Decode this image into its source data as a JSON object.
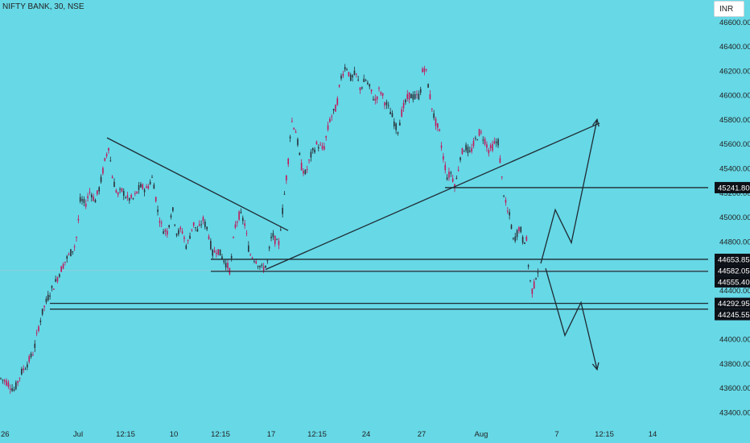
{
  "header": {
    "symbol": "NIFTY BANK, 30, NSE",
    "currency_button": "INR"
  },
  "chart_data": {
    "type": "candlestick",
    "y_ticks": [
      43400,
      43600,
      43800,
      44000,
      44200,
      44400,
      44600,
      44800,
      45000,
      45200,
      45400,
      45600,
      45800,
      46000,
      46200,
      46400,
      46600
    ],
    "ylim": [
      43280,
      46780
    ],
    "x_ticks": [
      {
        "label": "26",
        "x": 0
      },
      {
        "label": "Jul",
        "x": 97
      },
      {
        "label": "12:15",
        "x": 156
      },
      {
        "label": "10",
        "x": 216
      },
      {
        "label": "12:15",
        "x": 274
      },
      {
        "label": "17",
        "x": 337
      },
      {
        "label": "12:15",
        "x": 394
      },
      {
        "label": "24",
        "x": 455
      },
      {
        "label": "27",
        "x": 524
      },
      {
        "label": "Aug",
        "x": 598
      },
      {
        "label": "7",
        "x": 692
      },
      {
        "label": "12:15",
        "x": 751
      },
      {
        "label": "14",
        "x": 811
      }
    ],
    "x_domain": [
      0,
      880
    ],
    "price_path": [
      [
        0,
        43680
      ],
      [
        8,
        43650
      ],
      [
        18,
        43580
      ],
      [
        26,
        43720
      ],
      [
        34,
        43800
      ],
      [
        42,
        43900
      ],
      [
        48,
        44100
      ],
      [
        54,
        44250
      ],
      [
        62,
        44380
      ],
      [
        68,
        44450
      ],
      [
        75,
        44560
      ],
      [
        82,
        44650
      ],
      [
        90,
        44730
      ],
      [
        94,
        44780
      ],
      [
        97,
        44950
      ],
      [
        100,
        45150
      ],
      [
        106,
        45100
      ],
      [
        112,
        45220
      ],
      [
        118,
        45130
      ],
      [
        124,
        45250
      ],
      [
        130,
        45450
      ],
      [
        135,
        45580
      ],
      [
        140,
        45320
      ],
      [
        146,
        45180
      ],
      [
        152,
        45220
      ],
      [
        158,
        45150
      ],
      [
        166,
        45150
      ],
      [
        174,
        45250
      ],
      [
        182,
        45230
      ],
      [
        190,
        45330
      ],
      [
        196,
        45050
      ],
      [
        202,
        44900
      ],
      [
        208,
        44880
      ],
      [
        214,
        45080
      ],
      [
        220,
        44860
      ],
      [
        226,
        44900
      ],
      [
        232,
        44750
      ],
      [
        240,
        44950
      ],
      [
        246,
        44880
      ],
      [
        252,
        44980
      ],
      [
        258,
        44900
      ],
      [
        264,
        44700
      ],
      [
        270,
        44740
      ],
      [
        278,
        44650
      ],
      [
        286,
        44560
      ],
      [
        292,
        44920
      ],
      [
        298,
        45030
      ],
      [
        304,
        44950
      ],
      [
        310,
        44700
      ],
      [
        318,
        44650
      ],
      [
        326,
        44570
      ],
      [
        332,
        44620
      ],
      [
        338,
        44860
      ],
      [
        346,
        44760
      ],
      [
        352,
        45100
      ],
      [
        358,
        45450
      ],
      [
        362,
        45800
      ],
      [
        368,
        45700
      ],
      [
        374,
        45420
      ],
      [
        380,
        45350
      ],
      [
        386,
        45500
      ],
      [
        394,
        45600
      ],
      [
        402,
        45550
      ],
      [
        410,
        45800
      ],
      [
        418,
        45900
      ],
      [
        424,
        46150
      ],
      [
        430,
        46250
      ],
      [
        436,
        46130
      ],
      [
        442,
        46180
      ],
      [
        448,
        46050
      ],
      [
        454,
        46130
      ],
      [
        460,
        46050
      ],
      [
        466,
        45950
      ],
      [
        472,
        46050
      ],
      [
        478,
        45950
      ],
      [
        486,
        45850
      ],
      [
        494,
        45700
      ],
      [
        500,
        45880
      ],
      [
        508,
        46000
      ],
      [
        516,
        45980
      ],
      [
        522,
        46000
      ],
      [
        526,
        46250
      ],
      [
        530,
        46180
      ],
      [
        534,
        46000
      ],
      [
        540,
        45800
      ],
      [
        546,
        45700
      ],
      [
        550,
        45520
      ],
      [
        556,
        45320
      ],
      [
        560,
        45370
      ],
      [
        566,
        45250
      ],
      [
        572,
        45500
      ],
      [
        578,
        45580
      ],
      [
        584,
        45520
      ],
      [
        590,
        45620
      ],
      [
        596,
        45700
      ],
      [
        602,
        45640
      ],
      [
        608,
        45540
      ],
      [
        614,
        45600
      ],
      [
        620,
        45620
      ],
      [
        622,
        45400
      ],
      [
        626,
        45200
      ],
      [
        630,
        45050
      ],
      [
        634,
        45000
      ],
      [
        638,
        44800
      ],
      [
        642,
        44860
      ],
      [
        646,
        44930
      ],
      [
        650,
        44800
      ],
      [
        654,
        44830
      ],
      [
        658,
        44500
      ],
      [
        662,
        44380
      ],
      [
        666,
        44520
      ],
      [
        670,
        44590
      ]
    ],
    "price_labels": [
      {
        "value": 45241.8
      },
      {
        "value": 44653.85
      },
      {
        "value": 44582.05
      },
      {
        "value": 44555.4
      },
      {
        "value": 44292.95
      },
      {
        "value": 44245.55
      }
    ],
    "drawn_lines": [
      {
        "name": "downtrend-line",
        "from": [
          133,
          45650
        ],
        "to": [
          358,
          44890
        ]
      },
      {
        "name": "uptrend-line",
        "from": [
          330,
          44570
        ],
        "to": [
          745,
          45770
        ]
      },
      {
        "name": "resistance-45241",
        "from": [
          553,
          45241.8
        ],
        "to": [
          880,
          45241.8
        ]
      },
      {
        "name": "level-44653",
        "from": [
          262,
          44653.85
        ],
        "to": [
          880,
          44653.85
        ]
      },
      {
        "name": "level-44555",
        "from": [
          262,
          44555.4
        ],
        "to": [
          880,
          44555.4
        ]
      },
      {
        "name": "level-44292",
        "from": [
          62,
          44292.95
        ],
        "to": [
          880,
          44292.95
        ]
      },
      {
        "name": "level-44245",
        "from": [
          62,
          44245.55
        ],
        "to": [
          880,
          44245.55
        ]
      }
    ],
    "projections": [
      {
        "name": "bullish-projection",
        "points": [
          [
            672,
            44620
          ],
          [
            690,
            45060
          ],
          [
            710,
            44790
          ],
          [
            742,
            45800
          ]
        ]
      },
      {
        "name": "bearish-projection",
        "points": [
          [
            678,
            44580
          ],
          [
            702,
            44030
          ],
          [
            722,
            44300
          ],
          [
            742,
            43750
          ]
        ]
      }
    ],
    "colors": {
      "background": "#66d8e6",
      "up": "#2a2f38",
      "down": "#c2185b",
      "line": "#1f2a33",
      "axis_text": "#222222",
      "label_bg": "#0d1117",
      "label_text": "#ffffff"
    }
  }
}
